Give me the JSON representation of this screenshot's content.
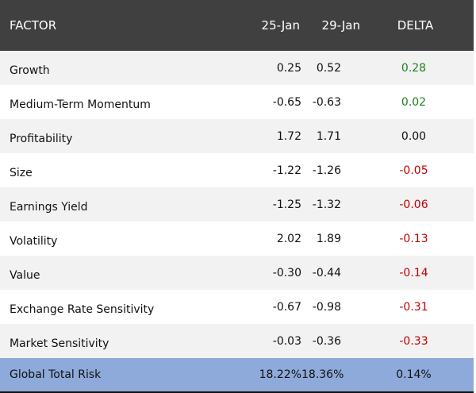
{
  "table": {
    "headers": [
      "FACTOR",
      "25-Jan",
      "29-Jan",
      "DELTA"
    ],
    "rows": [
      {
        "factor": "Growth",
        "d1": "0.25",
        "d2": "0.52",
        "delta": "0.28",
        "sign": "pos"
      },
      {
        "factor": "Medium-Term Momentum",
        "d1": "-0.65",
        "d2": "-0.63",
        "delta": "0.02",
        "sign": "pos"
      },
      {
        "factor": "Profitability",
        "d1": "1.72",
        "d2": "1.71",
        "delta": "0.00",
        "sign": "zero"
      },
      {
        "factor": "Size",
        "d1": "-1.22",
        "d2": "-1.26",
        "delta": "-0.05",
        "sign": "neg"
      },
      {
        "factor": "Earnings Yield",
        "d1": "-1.25",
        "d2": "-1.32",
        "delta": "-0.06",
        "sign": "neg"
      },
      {
        "factor": "Volatility",
        "d1": "2.02",
        "d2": "1.89",
        "delta": "-0.13",
        "sign": "neg"
      },
      {
        "factor": "Value",
        "d1": "-0.30",
        "d2": "-0.44",
        "delta": "-0.14",
        "sign": "neg"
      },
      {
        "factor": "Exchange Rate Sensitivity",
        "d1": "-0.67",
        "d2": "-0.98",
        "delta": "-0.31",
        "sign": "neg"
      },
      {
        "factor": "Market Sensitivity",
        "d1": "-0.03",
        "d2": "-0.36",
        "delta": "-0.33",
        "sign": "neg"
      }
    ],
    "total": {
      "factor": "Global Total Risk",
      "d1": "18.22%",
      "d2": "18.36%",
      "delta": "0.14%"
    }
  },
  "colors": {
    "header_bg": "#404040",
    "total_bg": "#8eaadb",
    "positive": "#1f7f1f",
    "negative": "#c00000",
    "row_shade": "#f2f2f2"
  }
}
